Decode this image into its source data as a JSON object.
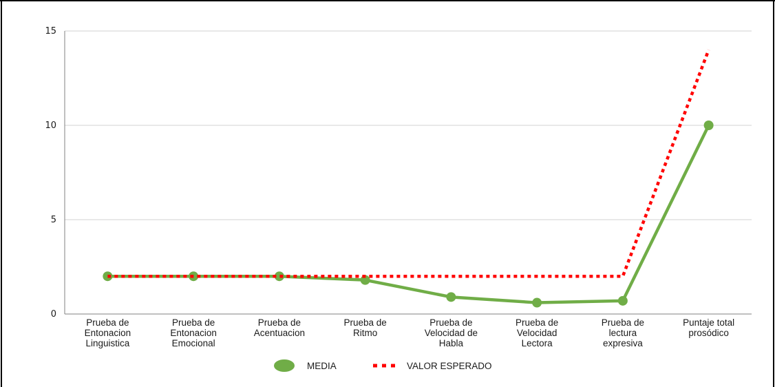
{
  "chart_data": {
    "type": "line",
    "categories": [
      [
        "Prueba de",
        "Entonacion",
        "Linguistica"
      ],
      [
        "Prueba de",
        "Entonacion",
        "Emocional"
      ],
      [
        "Prueba de",
        "Acentuacion"
      ],
      [
        "Prueba de",
        "Ritmo"
      ],
      [
        "Prueba de",
        "Velocidad de",
        "Habla"
      ],
      [
        "Prueba de",
        "Velocidad",
        "Lectora"
      ],
      [
        "Prueba de",
        "lectura",
        "expresiva"
      ],
      [
        "Puntaje total",
        "prosódico"
      ]
    ],
    "series": [
      {
        "name": "MEDIA",
        "values": [
          2,
          2,
          2,
          1.8,
          0.9,
          0.6,
          0.7,
          10
        ],
        "color": "#70AD47",
        "style": "solid-markers"
      },
      {
        "name": "VALOR ESPERADO",
        "values": [
          2,
          2,
          2,
          2,
          2,
          2,
          2,
          14
        ],
        "color": "#FF0000",
        "style": "dotted"
      }
    ],
    "yticks": [
      "0",
      "5",
      "10",
      "15"
    ],
    "ylim": [
      0,
      15
    ],
    "grid": true,
    "legend_position": "bottom"
  }
}
